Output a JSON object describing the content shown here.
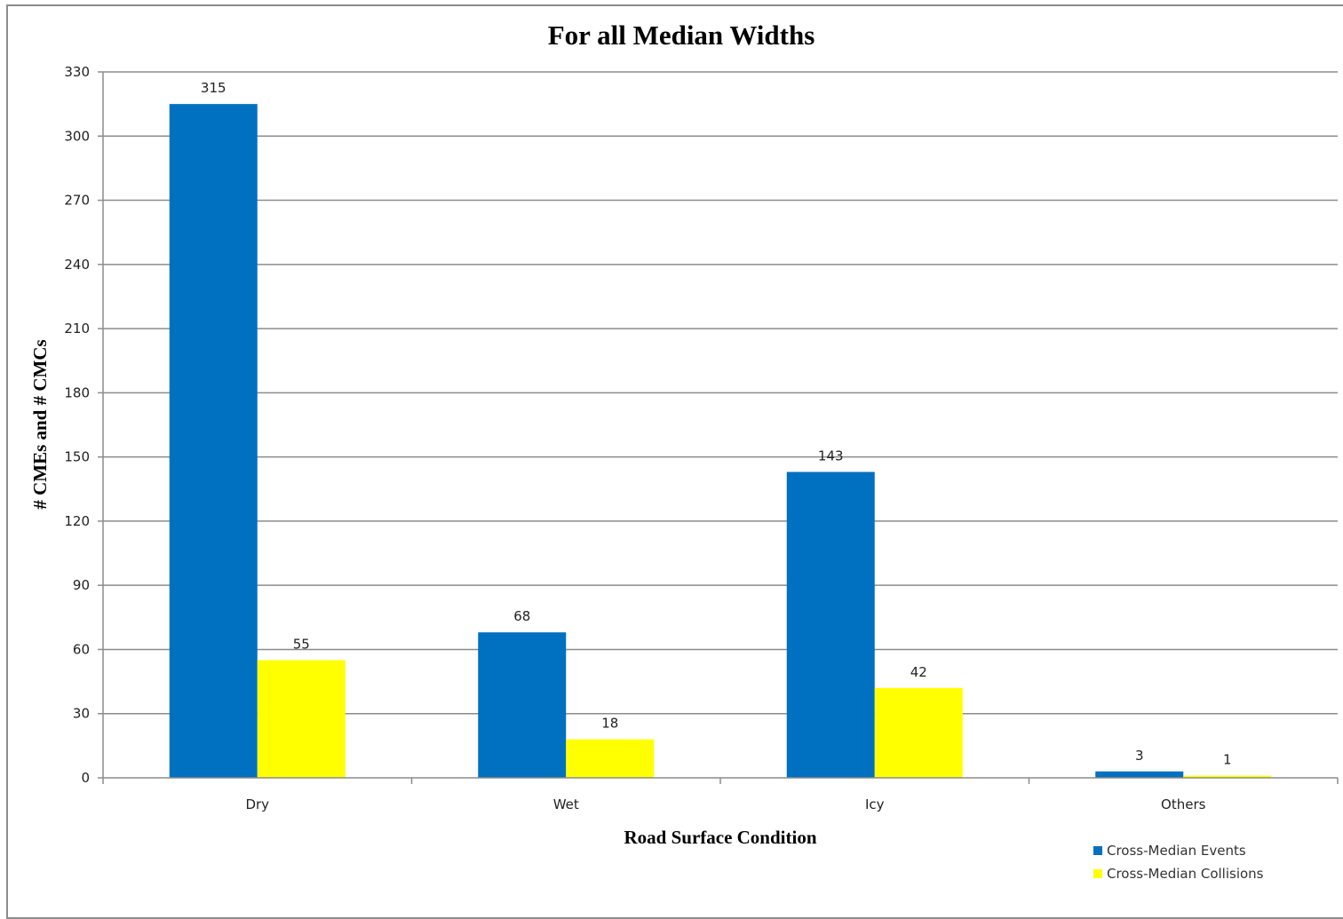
{
  "chart_data": {
    "type": "bar",
    "title": "For all Median Widths",
    "xlabel": "Road Surface Condition",
    "ylabel": "# CMEs and # CMCs",
    "categories": [
      "Dry",
      "Wet",
      "Icy",
      "Others"
    ],
    "series": [
      {
        "name": "Cross-Median Events",
        "color": "#0070C0",
        "values": [
          315,
          68,
          143,
          3
        ]
      },
      {
        "name": "Cross-Median Collisions",
        "color": "#FFFF00",
        "values": [
          55,
          18,
          42,
          1
        ]
      }
    ],
    "ylim": [
      0,
      330
    ],
    "yticks": [
      0,
      30,
      60,
      90,
      120,
      150,
      180,
      210,
      240,
      270,
      300,
      330
    ],
    "grid": true,
    "legend_position": "bottom-right"
  }
}
